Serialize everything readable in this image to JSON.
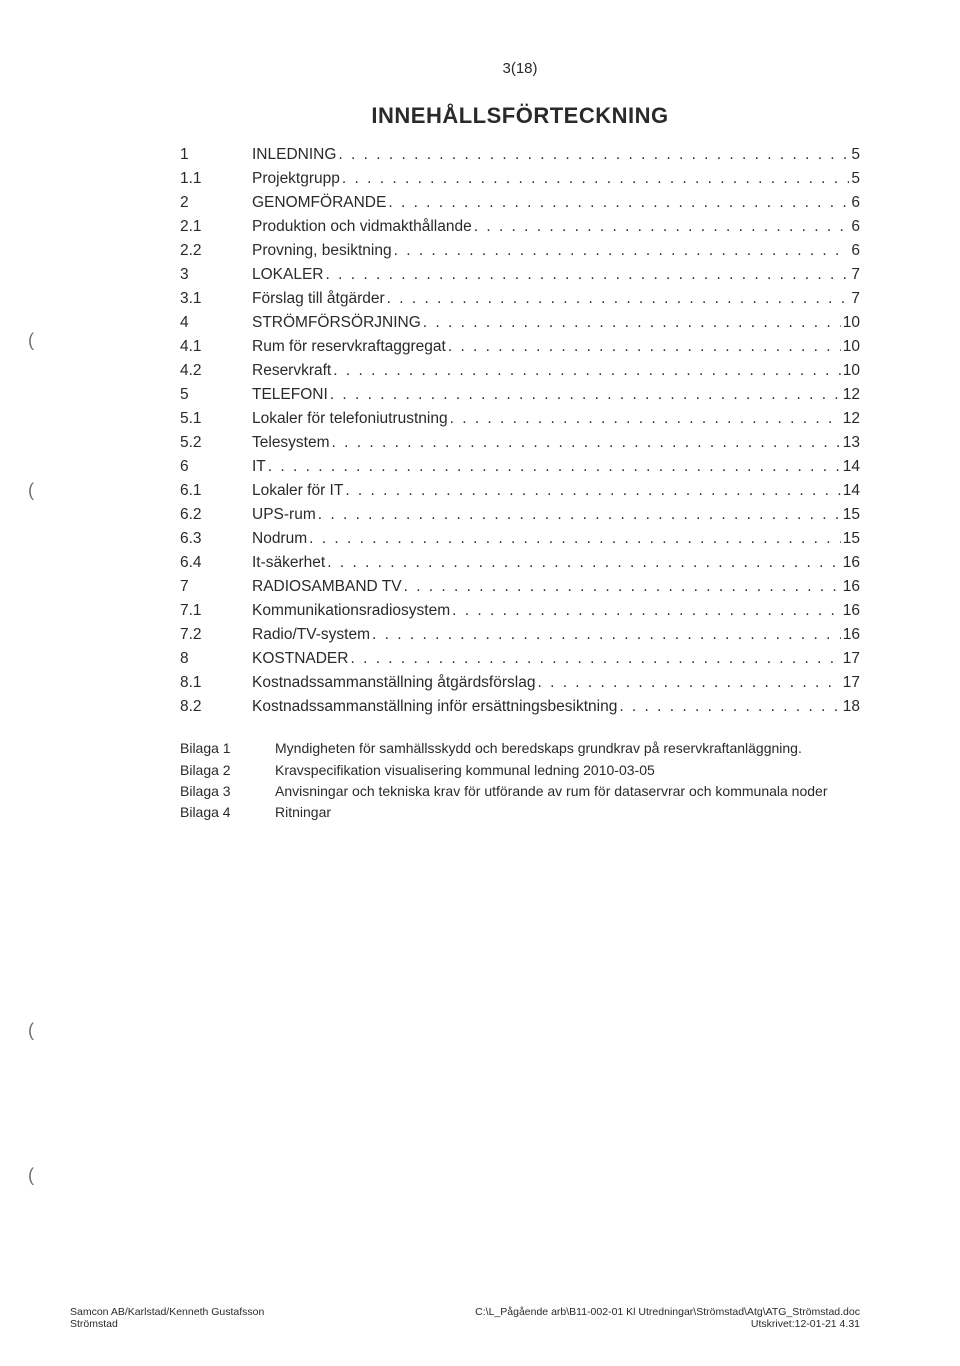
{
  "page_number_label": "3(18)",
  "heading": "INNEHÅLLSFÖRTECKNING",
  "toc": [
    {
      "num": "1",
      "title": "INLEDNING",
      "page": "5"
    },
    {
      "num": "1.1",
      "title": "Projektgrupp",
      "page": "5"
    },
    {
      "num": "2",
      "title": "GENOMFÖRANDE",
      "page": "6"
    },
    {
      "num": "2.1",
      "title": "Produktion och vidmakthållande",
      "page": "6"
    },
    {
      "num": "2.2",
      "title": "Provning, besiktning",
      "page": "6"
    },
    {
      "num": "3",
      "title": "LOKALER",
      "page": "7"
    },
    {
      "num": "3.1",
      "title": "Förslag till åtgärder",
      "page": "7"
    },
    {
      "num": "4",
      "title": "STRÖMFÖRSÖRJNING",
      "page": "10"
    },
    {
      "num": "4.1",
      "title": "Rum för reservkraftaggregat",
      "page": "10"
    },
    {
      "num": "4.2",
      "title": "Reservkraft",
      "page": "10"
    },
    {
      "num": "5",
      "title": "TELEFONI",
      "page": "12"
    },
    {
      "num": "5.1",
      "title": "Lokaler för telefoniutrustning",
      "page": "12"
    },
    {
      "num": "5.2",
      "title": "Telesystem",
      "page": "13"
    },
    {
      "num": "6",
      "title": "IT",
      "page": "14"
    },
    {
      "num": "6.1",
      "title": "Lokaler för IT",
      "page": "14"
    },
    {
      "num": "6.2",
      "title": "UPS-rum",
      "page": "15"
    },
    {
      "num": "6.3",
      "title": "Nodrum",
      "page": "15"
    },
    {
      "num": "6.4",
      "title": "It-säkerhet",
      "page": "16"
    },
    {
      "num": "7",
      "title": "RADIOSAMBAND TV",
      "page": "16"
    },
    {
      "num": "7.1",
      "title": "Kommunikationsradiosystem",
      "page": "16"
    },
    {
      "num": "7.2",
      "title": "Radio/TV-system",
      "page": "16"
    },
    {
      "num": "8",
      "title": "KOSTNADER",
      "page": "17"
    },
    {
      "num": "8.1",
      "title": "Kostnadssammanställning åtgärdsförslag",
      "page": "17"
    },
    {
      "num": "8.2",
      "title": "Kostnadssammanställning inför ersättningsbesiktning",
      "page": "18"
    }
  ],
  "bilagor": [
    {
      "label": "Bilaga 1",
      "desc": "Myndigheten för samhällsskydd och beredskaps grundkrav på reservkraftanläggning."
    },
    {
      "label": "Bilaga 2",
      "desc": "Kravspecifikation visualisering kommunal ledning 2010-03-05"
    },
    {
      "label": "Bilaga 3",
      "desc": "Anvisningar och tekniska krav för utförande av rum för dataservrar och kommunala noder"
    },
    {
      "label": "Bilaga 4",
      "desc": "Ritningar"
    }
  ],
  "footer_left_line1": "Samcon AB/Karlstad/Kenneth Gustafsson",
  "footer_left_line2": "Strömstad",
  "footer_right_line1": "C:\\L_Pågående arb\\B11-002-01 Kl Utredningar\\Strömstad\\Atg\\ATG_Strömstad.doc",
  "footer_right_line2": "Utskrivet:12-01-21  4.31",
  "punch_glyph": "(",
  "colors": {
    "text": "#2a2a2a",
    "background": "#ffffff",
    "punch": "#6f6f6f"
  },
  "fonts": {
    "body_family": "Verdana, Arial, sans-serif",
    "body_size_pt": 12,
    "heading_size_pt": 17,
    "footer_size_pt": 8
  }
}
